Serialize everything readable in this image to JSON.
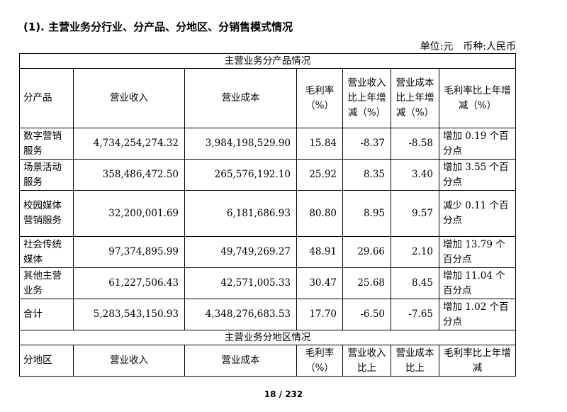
{
  "heading": "(1). 主营业务分行业、分产品、分地区、分销售模式情况",
  "unit_label": "单位:元",
  "currency_label": "币种:人民币",
  "product_section": {
    "title": "主营业务分产品情况",
    "headers": [
      "分产品",
      "营业收入",
      "营业成本",
      "毛利率（%）",
      "营业收入比上年增减（%）",
      "营业成本比上年增减（%）",
      "毛利率比上年增减（%）"
    ],
    "rows": [
      {
        "name": "数字营销服务",
        "revenue": "4,734,254,274.32",
        "cost": "3,984,198,529.90",
        "margin": "15.84",
        "rev_change": "-8.37",
        "cost_change": "-8.58",
        "margin_change": "增加 0.19 个百分点"
      },
      {
        "name": "场景活动服务",
        "revenue": "358,486,472.50",
        "cost": "265,576,192.10",
        "margin": "25.92",
        "rev_change": "8.35",
        "cost_change": "3.40",
        "margin_change": "增加 3.55 个百分点"
      },
      {
        "name": "校园媒体营销服务",
        "revenue": "32,200,001.69",
        "cost": "6,181,686.93",
        "margin": "80.80",
        "rev_change": "8.95",
        "cost_change": "9.57",
        "margin_change": "减少 0.11 个百分点"
      },
      {
        "name": "社会传统媒体",
        "revenue": "97,374,895.99",
        "cost": "49,749,269.27",
        "margin": "48.91",
        "rev_change": "29.66",
        "cost_change": "2.10",
        "margin_change": "增加 13.79 个百分点"
      },
      {
        "name": "其他主营业务",
        "revenue": "61,227,506.43",
        "cost": "42,571,005.33",
        "margin": "30.47",
        "rev_change": "25.68",
        "cost_change": "8.45",
        "margin_change": "增加 11.04 个百分点"
      },
      {
        "name": "合计",
        "revenue": "5,283,543,150.93",
        "cost": "4,348,276,683.53",
        "margin": "17.70",
        "rev_change": "-6.50",
        "cost_change": "-7.65",
        "margin_change": "增加 1.02 个百分点"
      }
    ]
  },
  "region_section": {
    "title": "主营业务分地区情况",
    "headers": [
      "分地区",
      "营业收入",
      "营业成本",
      "毛利率（%）",
      "营业收入比上",
      "营业成本比上",
      "毛利率比上年增减"
    ]
  },
  "footer": "18 / 232"
}
